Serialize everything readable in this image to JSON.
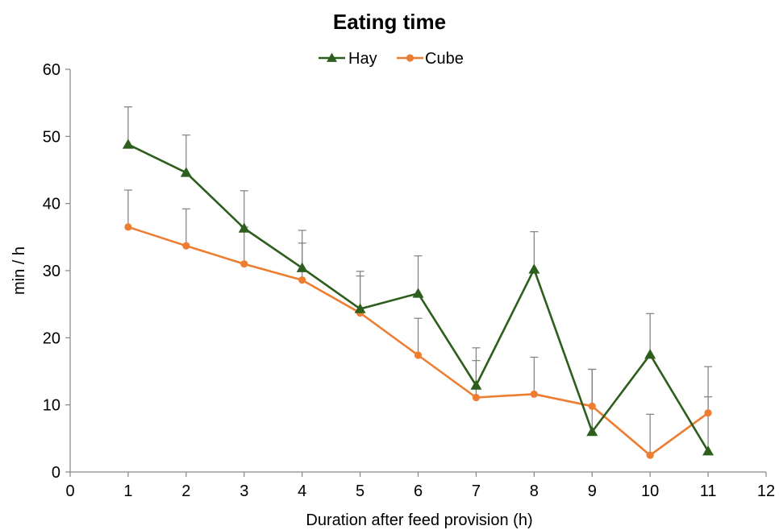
{
  "chart_data": {
    "type": "line",
    "title": "Eating time",
    "xlabel": "Duration after feed provision (h)",
    "ylabel": "min / h",
    "xlim": [
      0,
      12
    ],
    "ylim": [
      0,
      60
    ],
    "x_ticks": [
      "0",
      "1",
      "2",
      "3",
      "4",
      "5",
      "6",
      "7",
      "8",
      "9",
      "10",
      "11",
      "12"
    ],
    "y_ticks": [
      "0",
      "10",
      "20",
      "30",
      "40",
      "50",
      "60"
    ],
    "grid": false,
    "legend_position": "top-center",
    "series": [
      {
        "name": "Hay",
        "color": "#2e5e1e",
        "marker": "triangle",
        "x": [
          1,
          2,
          3,
          4,
          5,
          6,
          7,
          8,
          9,
          10,
          11
        ],
        "y": [
          48.8,
          44.6,
          36.3,
          30.4,
          24.3,
          26.6,
          12.9,
          30.2,
          6.0,
          17.5,
          3.1
        ],
        "error_upper": [
          5.6,
          5.6,
          5.6,
          5.6,
          5.6,
          5.6,
          5.6,
          5.6,
          9.3,
          6.1,
          12.6
        ]
      },
      {
        "name": "Cube",
        "color": "#ed7d31",
        "marker": "circle",
        "x": [
          1,
          2,
          3,
          4,
          5,
          6,
          7,
          8,
          9,
          10,
          11
        ],
        "y": [
          36.5,
          33.7,
          31.0,
          28.6,
          23.7,
          17.4,
          11.1,
          11.6,
          9.8,
          2.5,
          8.8
        ],
        "error_upper": [
          5.5,
          5.5,
          5.5,
          5.5,
          5.5,
          5.5,
          5.5,
          5.5,
          5.5,
          6.1,
          2.4
        ]
      }
    ]
  }
}
